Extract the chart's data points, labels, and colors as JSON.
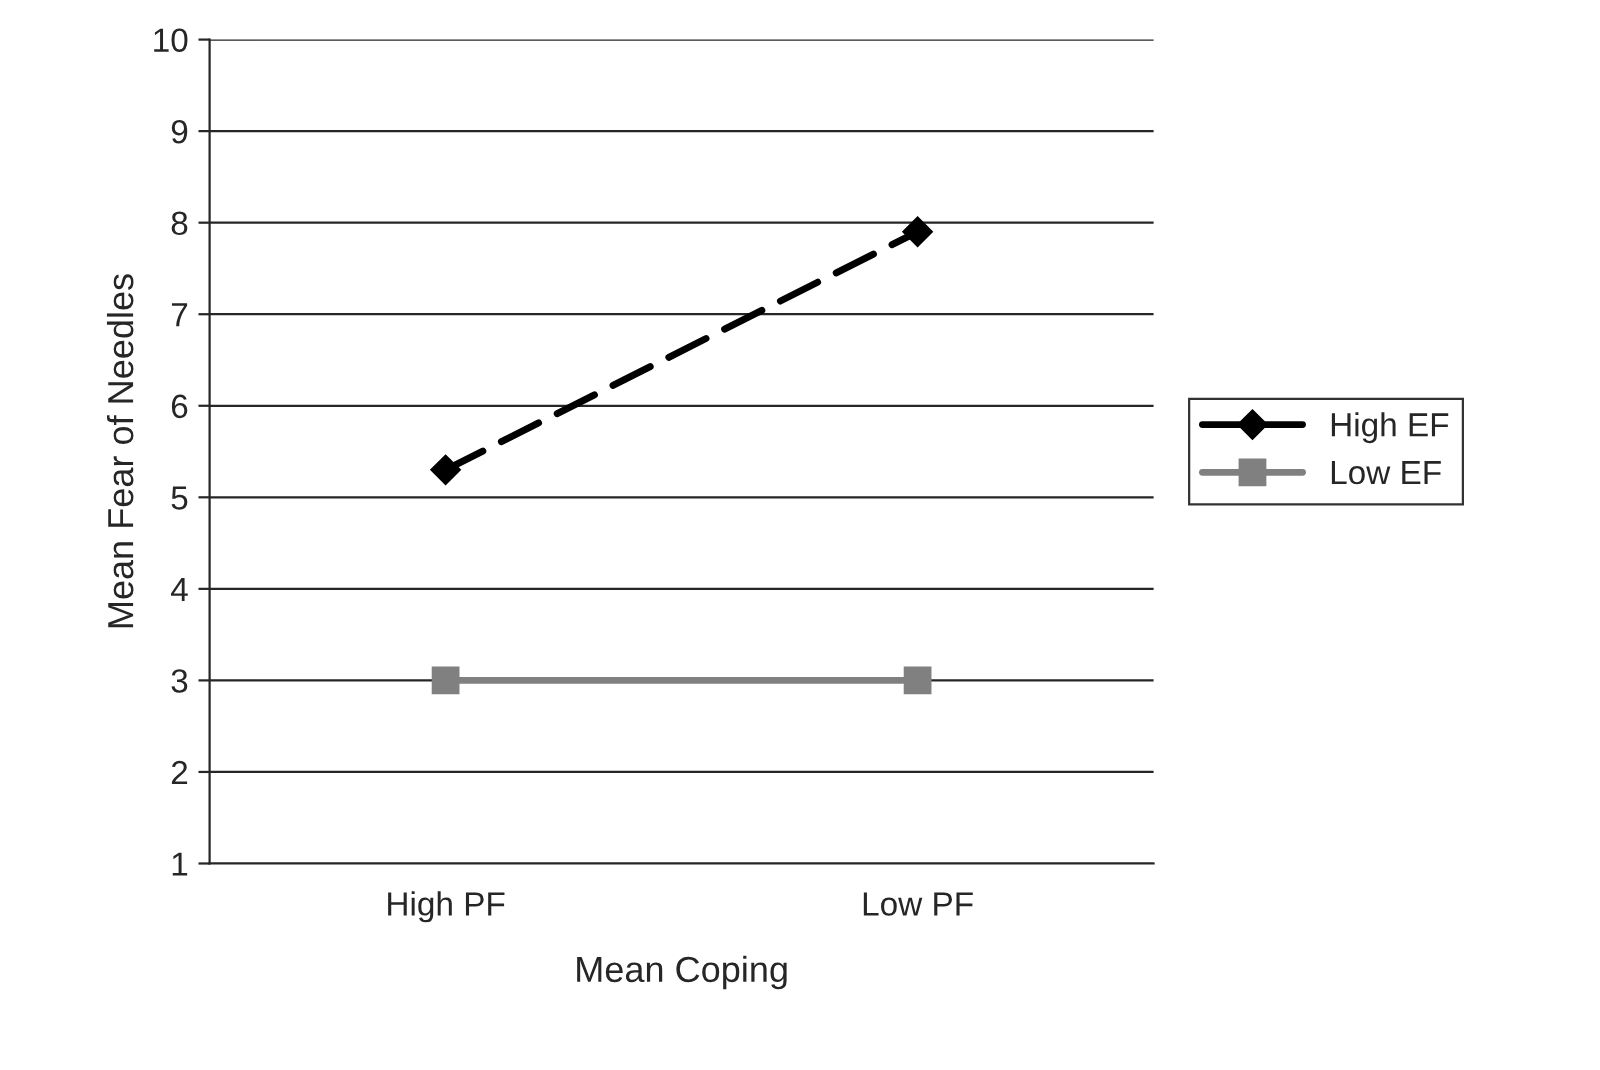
{
  "chart_data": {
    "type": "line",
    "xlabel": "Mean Coping",
    "ylabel": "Mean Fear of Needles",
    "categories": [
      "High PF",
      "Low PF"
    ],
    "series": [
      {
        "name": "High EF",
        "color": "#000000",
        "values": [
          5.3,
          7.9
        ],
        "marker": "diamond",
        "line_style": "dashed"
      },
      {
        "name": "Low EF",
        "color": "#808080",
        "values": [
          3.0,
          3.0
        ],
        "marker": "square",
        "line_style": "solid"
      }
    ],
    "ylim": [
      1,
      10
    ],
    "yticks": [
      1,
      2,
      3,
      4,
      5,
      6,
      7,
      8,
      9,
      10
    ],
    "grid": "y",
    "legend": "right"
  }
}
